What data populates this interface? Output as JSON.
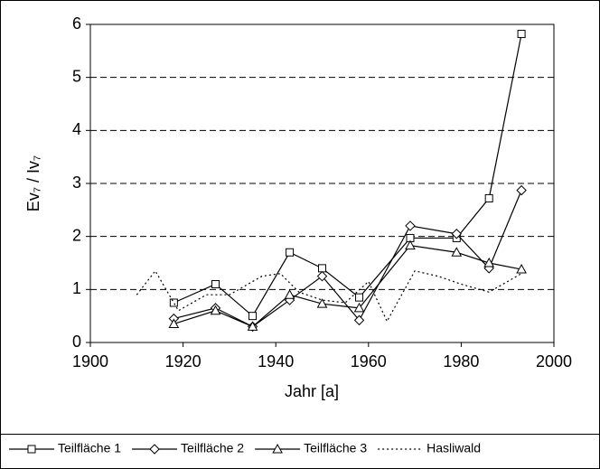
{
  "chart_data": {
    "type": "line",
    "x_label": "Jahr [a]",
    "y_label": "Ev₇ / Iv₇",
    "xlim": [
      1900,
      2000
    ],
    "xticks": [
      1900,
      1920,
      1940,
      1960,
      1980,
      2000
    ],
    "ylim": [
      0,
      6
    ],
    "yticks": [
      0,
      1,
      2,
      3,
      4,
      5,
      6
    ],
    "grid": true,
    "legend": "bottom",
    "series": [
      {
        "name": "Teilfläche 1",
        "color": "#000000",
        "marker": "square",
        "dash": "solid",
        "x": [
          1918,
          1927,
          1935,
          1943,
          1950,
          1958,
          1969,
          1979,
          1986,
          1993
        ],
        "values": [
          0.75,
          1.1,
          0.5,
          1.7,
          1.4,
          0.85,
          1.97,
          1.97,
          2.72,
          5.82
        ]
      },
      {
        "name": "Teilfläche 2",
        "color": "#000000",
        "marker": "diamond",
        "dash": "solid",
        "x": [
          1918,
          1927,
          1935,
          1943,
          1950,
          1958,
          1969,
          1979,
          1986,
          1993
        ],
        "values": [
          0.45,
          0.65,
          0.3,
          0.8,
          1.25,
          0.42,
          2.2,
          2.05,
          1.4,
          2.87
        ]
      },
      {
        "name": "Teilfläche 3",
        "color": "#000000",
        "marker": "triangle",
        "dash": "solid",
        "x": [
          1918,
          1927,
          1935,
          1943,
          1950,
          1958,
          1969,
          1979,
          1986,
          1993
        ],
        "values": [
          0.35,
          0.6,
          0.3,
          0.9,
          0.73,
          0.65,
          1.83,
          1.7,
          1.5,
          1.38
        ]
      },
      {
        "name": "Hasliwald",
        "color": "#000000",
        "marker": "none",
        "dash": "dotted",
        "x": [
          1910,
          1914,
          1919,
          1925,
          1930,
          1937,
          1941,
          1945,
          1950,
          1955,
          1960,
          1964,
          1970,
          1975,
          1980,
          1986,
          1993
        ],
        "values": [
          0.9,
          1.35,
          0.6,
          0.9,
          0.9,
          1.25,
          1.3,
          0.95,
          0.8,
          0.75,
          1.15,
          0.4,
          1.35,
          1.25,
          1.1,
          0.95,
          1.3
        ]
      }
    ]
  }
}
